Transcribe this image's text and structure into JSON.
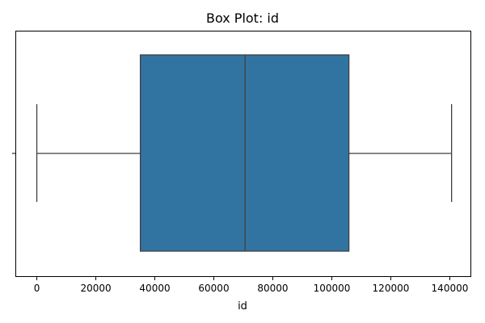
{
  "chart_data": {
    "type": "box",
    "title": "Box Plot: id",
    "xlabel": "id",
    "ylabel": "",
    "orientation": "horizontal",
    "xlim": [
      -7000,
      147000
    ],
    "x_ticks": [
      0,
      20000,
      40000,
      60000,
      80000,
      100000,
      120000,
      140000
    ],
    "x_tick_labels": [
      "0",
      "20000",
      "40000",
      "60000",
      "80000",
      "100000",
      "120000",
      "140000"
    ],
    "y_tick_labels": [
      ""
    ],
    "grid": false,
    "legend": "none",
    "colors": {
      "box_fill": "#3274a1",
      "lines": "#3f3f3f",
      "axes": "#000000"
    },
    "series": [
      {
        "min": 0,
        "q1": 35100,
        "median": 70600,
        "q3": 105800,
        "max": 140600
      }
    ]
  }
}
